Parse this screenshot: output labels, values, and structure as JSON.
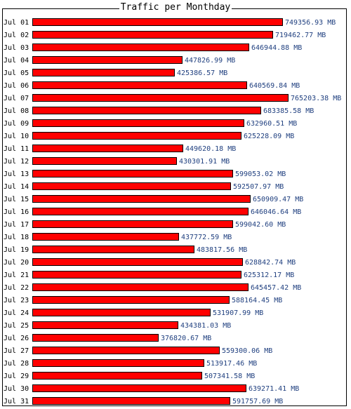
{
  "chart_data": {
    "type": "bar",
    "orientation": "horizontal",
    "title": "Traffic per Monthday",
    "unit": "MB",
    "categories": [
      "Jul 01",
      "Jul 02",
      "Jul 03",
      "Jul 04",
      "Jul 05",
      "Jul 06",
      "Jul 07",
      "Jul 08",
      "Jul 09",
      "Jul 10",
      "Jul 11",
      "Jul 12",
      "Jul 13",
      "Jul 14",
      "Jul 15",
      "Jul 16",
      "Jul 17",
      "Jul 18",
      "Jul 19",
      "Jul 20",
      "Jul 21",
      "Jul 22",
      "Jul 23",
      "Jul 24",
      "Jul 25",
      "Jul 26",
      "Jul 27",
      "Jul 28",
      "Jul 29",
      "Jul 30",
      "Jul 31"
    ],
    "values": [
      749356.93,
      719462.77,
      646944.88,
      447826.99,
      425386.57,
      640569.84,
      765203.38,
      683385.58,
      632960.51,
      625228.09,
      449620.18,
      430301.91,
      599053.02,
      592507.97,
      650909.47,
      646046.64,
      599042.6,
      437772.59,
      483817.56,
      628842.74,
      625312.17,
      645457.42,
      588164.45,
      531907.99,
      434381.03,
      376820.67,
      559300.06,
      513917.46,
      507341.58,
      639271.41,
      591757.69
    ],
    "value_labels": [
      "749356.93 MB",
      "719462.77 MB",
      "646944.88 MB",
      "447826.99 MB",
      "425386.57 MB",
      "640569.84 MB",
      "765203.38 MB",
      "683385.58 MB",
      "632960.51 MB",
      "625228.09 MB",
      "449620.18 MB",
      "430301.91 MB",
      "599053.02 MB",
      "592507.97 MB",
      "650909.47 MB",
      "646046.64 MB",
      "599042.60 MB",
      "437772.59 MB",
      "483817.56 MB",
      "628842.74 MB",
      "625312.17 MB",
      "645457.42 MB",
      "588164.45 MB",
      "531907.99 MB",
      "434381.03 MB",
      "376820.67 MB",
      "559300.06 MB",
      "513917.46 MB",
      "507341.58 MB",
      "639271.41 MB",
      "591757.69 MB"
    ],
    "bar_color": "#ff0000",
    "bar_border": "#000000",
    "label_color": "#1f3f7f",
    "grid": false
  }
}
